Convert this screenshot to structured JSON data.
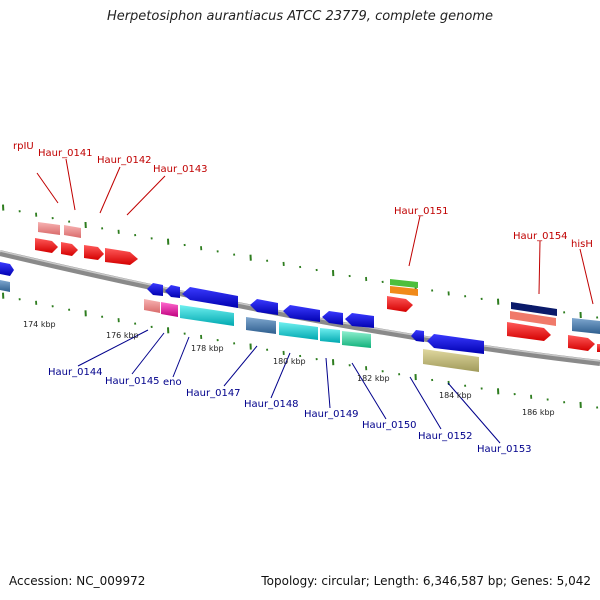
{
  "title": "Herpetosiphon aurantiacus ATCC 23779, complete genome",
  "footer": {
    "accession": "Accession: NC_009972",
    "summary": "Topology: circular; Length: 6,346,587 bp; Genes: 5,042"
  },
  "scale_labels": [
    "174 kbp",
    "176 kbp",
    "178 kbp",
    "180 kbp",
    "182 kbp",
    "184 kbp",
    "186 kbp"
  ],
  "top_labels": [
    "rpIU",
    "Haur_0141",
    "Haur_0142",
    "Haur_0143",
    "Haur_0151",
    "Haur_0154",
    "hisH"
  ],
  "bottom_labels": [
    "Haur_0144",
    "Haur_0145",
    "eno",
    "Haur_0147",
    "Haur_0148",
    "Haur_0149",
    "Haur_0150",
    "Haur_0152",
    "Haur_0153"
  ],
  "colors": {
    "backbone": "#8a8a8a",
    "ticks": "#2e7d1f",
    "top_label": "#c00000",
    "bottom_label": "#00008b"
  }
}
